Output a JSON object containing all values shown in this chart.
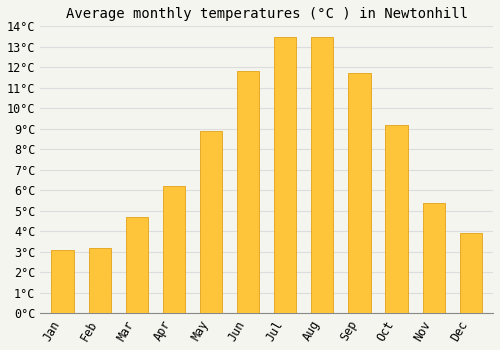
{
  "title": "Average monthly temperatures (°C ) in Newtonhill",
  "months": [
    "Jan",
    "Feb",
    "Mar",
    "Apr",
    "May",
    "Jun",
    "Jul",
    "Aug",
    "Sep",
    "Oct",
    "Nov",
    "Dec"
  ],
  "values": [
    3.1,
    3.2,
    4.7,
    6.2,
    8.9,
    11.8,
    13.5,
    13.5,
    11.7,
    9.2,
    5.4,
    3.9
  ],
  "bar_color_top": "#FFC53A",
  "bar_color_bottom": "#F5A800",
  "bar_edge_color": "#E09600",
  "background_color": "#F5F5F0",
  "plot_bg_color": "#F5F5F0",
  "grid_color": "#DDDDDD",
  "ylim": [
    0,
    14
  ],
  "ytick_step": 1,
  "title_fontsize": 10,
  "tick_fontsize": 8.5,
  "tick_font_family": "monospace"
}
